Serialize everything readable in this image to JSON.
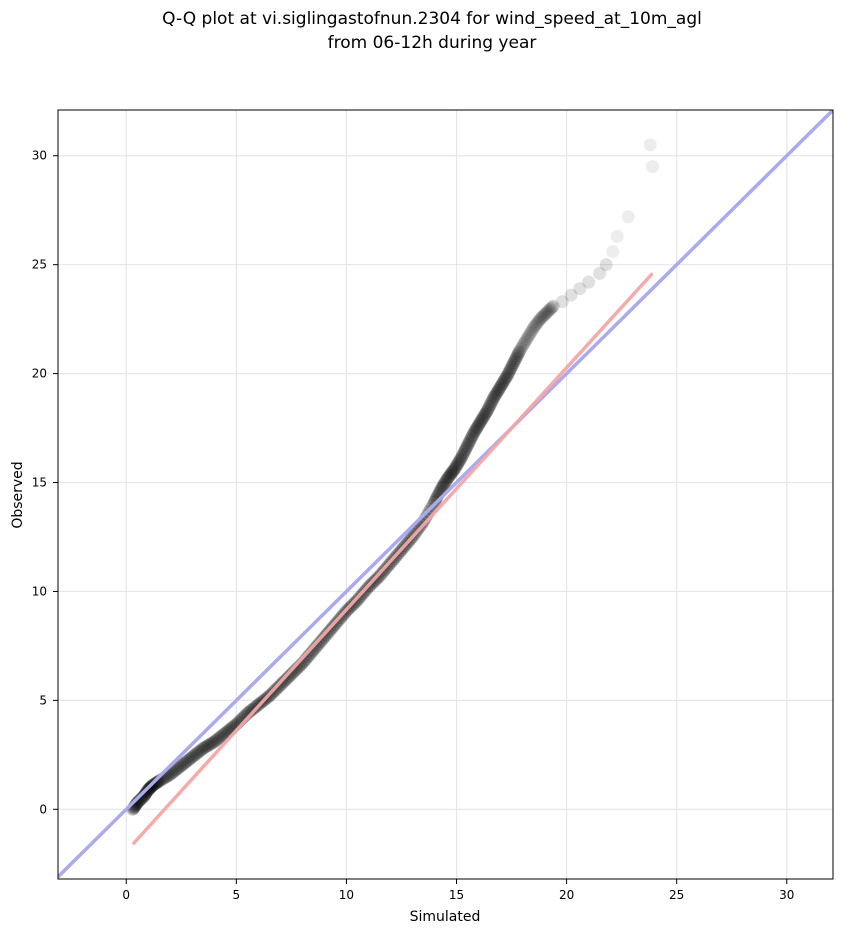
{
  "chart_data": {
    "type": "scatter",
    "title_lines": [
      "Q-Q plot at vi.siglingastofnun.2304 for wind_speed_at_10m_agl",
      "from 06-12h during year"
    ],
    "xlabel": "Simulated",
    "ylabel": "Observed",
    "xlim": [
      -3.1,
      32.1
    ],
    "ylim": [
      -3.2,
      32.1
    ],
    "xticks": [
      0,
      5,
      10,
      15,
      20,
      25,
      30
    ],
    "yticks": [
      0,
      5,
      10,
      15,
      20,
      25,
      30
    ],
    "grid": true,
    "quantiles": {
      "x": [
        0.3,
        0.5,
        0.8,
        1.0,
        1.2,
        1.5,
        2.0,
        2.5,
        3.0,
        3.5,
        4.0,
        4.5,
        5.0,
        5.5,
        6.0,
        6.5,
        7.0,
        7.5,
        8.0,
        8.5,
        9.0,
        9.5,
        10.0,
        10.5,
        11.0,
        11.5,
        12.0,
        12.5,
        13.0,
        13.5,
        14.0,
        14.3,
        14.6,
        14.9,
        15.2,
        15.5,
        15.8,
        16.1,
        16.4,
        16.7,
        17.0,
        17.3,
        17.6,
        17.9,
        18.2,
        18.5,
        18.8,
        19.1,
        19.4,
        19.8,
        20.2,
        20.6,
        21.0,
        21.5,
        21.8,
        22.1,
        22.3,
        22.8,
        23.9,
        23.8
      ],
      "y": [
        0.0,
        0.3,
        0.6,
        0.9,
        1.1,
        1.3,
        1.6,
        2.0,
        2.4,
        2.8,
        3.1,
        3.5,
        3.9,
        4.4,
        4.8,
        5.2,
        5.7,
        6.2,
        6.7,
        7.3,
        7.9,
        8.5,
        9.1,
        9.6,
        10.2,
        10.7,
        11.3,
        11.9,
        12.5,
        13.2,
        14.1,
        14.7,
        15.2,
        15.6,
        16.1,
        16.7,
        17.3,
        17.8,
        18.3,
        18.9,
        19.4,
        19.9,
        20.5,
        21.1,
        21.6,
        22.1,
        22.5,
        22.8,
        23.1,
        23.3,
        23.6,
        23.9,
        24.2,
        24.6,
        25.0,
        25.6,
        26.3,
        27.2,
        29.5,
        30.5
      ]
    },
    "reference_line": {
      "name": "1:1",
      "color": "#aaaaee",
      "x": [
        -3.1,
        32.1
      ],
      "y": [
        -3.1,
        32.1
      ]
    },
    "fit_line": {
      "color": "#f3a6a6",
      "x": [
        0.3,
        23.9
      ],
      "y": [
        -1.6,
        24.6
      ]
    },
    "point_color": "#000000"
  }
}
